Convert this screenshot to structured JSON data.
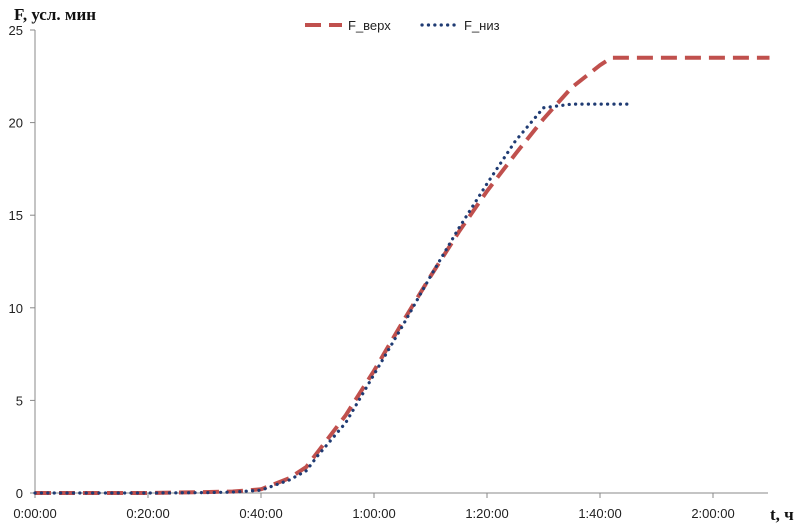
{
  "chart_data": {
    "type": "line",
    "title": "",
    "ylabel": "F, усл. мин",
    "xlabel": "t, ч",
    "ylim": [
      0,
      25
    ],
    "yticks": [
      0,
      5,
      10,
      15,
      20,
      25
    ],
    "xlim_min": [
      0,
      135
    ],
    "xticks": [
      "0:00:00",
      "0:20:00",
      "0:40:00",
      "1:00:00",
      "1:20:00",
      "1:40:00",
      "2:00:00"
    ],
    "xtick_minutes": [
      0,
      20,
      40,
      60,
      80,
      100,
      120
    ],
    "x_unit": "minutes",
    "grid": false,
    "legend_position": "top",
    "series": [
      {
        "name": "F_верх",
        "color": "#C0504D",
        "style": "dashed",
        "x_min": [
          0,
          10,
          20,
          30,
          35,
          40,
          45,
          48,
          50,
          55,
          60,
          65,
          70,
          75,
          80,
          85,
          90,
          95,
          100,
          102,
          105,
          110,
          115,
          120,
          125,
          130
        ],
        "y": [
          0,
          0,
          0,
          0.05,
          0.08,
          0.2,
          0.8,
          1.4,
          2.2,
          4.2,
          6.6,
          9.2,
          11.7,
          14.1,
          16.3,
          18.3,
          20.2,
          21.9,
          23.1,
          23.5,
          23.5,
          23.5,
          23.5,
          23.5,
          23.5,
          23.5
        ]
      },
      {
        "name": "F_низ",
        "color": "#1F3B73",
        "style": "dotted",
        "x_min": [
          0,
          10,
          20,
          30,
          35,
          40,
          45,
          48,
          50,
          55,
          60,
          65,
          70,
          75,
          80,
          85,
          90,
          95,
          98,
          100,
          105
        ],
        "y": [
          0,
          0,
          0,
          0.02,
          0.05,
          0.15,
          0.7,
          1.2,
          2.0,
          3.8,
          6.4,
          9.0,
          11.7,
          14.3,
          16.7,
          19.0,
          20.8,
          21.0,
          21.0,
          21.0,
          21.0
        ]
      }
    ]
  }
}
